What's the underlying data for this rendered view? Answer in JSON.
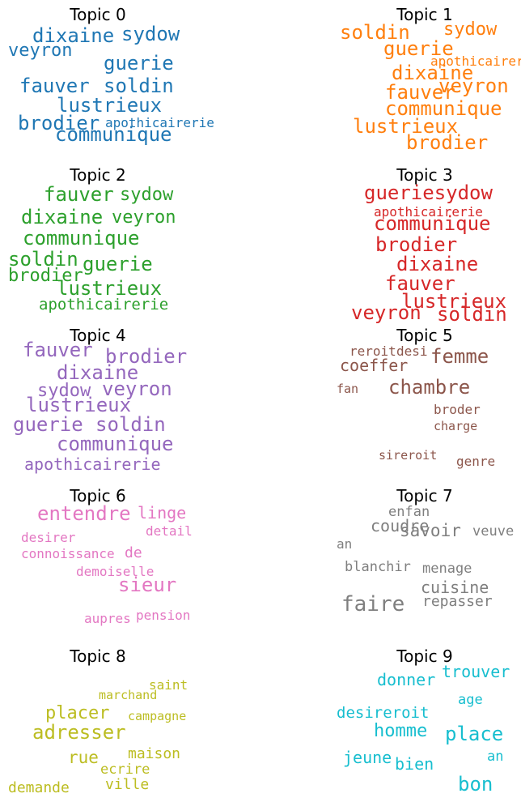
{
  "chart_data": [
    {
      "type": "wordcloud",
      "title": "Topic 0",
      "color": "#1f77b4",
      "words": [
        {
          "text": "dixaine",
          "weight": 0.85
        },
        {
          "text": "sydow",
          "weight": 0.85
        },
        {
          "text": "veyron",
          "weight": 0.78
        },
        {
          "text": "guerie",
          "weight": 0.85
        },
        {
          "text": "fauver",
          "weight": 0.85
        },
        {
          "text": "soldin",
          "weight": 0.85
        },
        {
          "text": "lustrieux",
          "weight": 0.85
        },
        {
          "text": "brodier",
          "weight": 0.85
        },
        {
          "text": "apothicairerie",
          "weight": 0.35
        },
        {
          "text": "communique",
          "weight": 0.85
        }
      ]
    },
    {
      "type": "wordcloud",
      "title": "Topic 1",
      "color": "#ff7f0e",
      "words": [
        {
          "text": "soldin",
          "weight": 0.85
        },
        {
          "text": "sydow",
          "weight": 0.78
        },
        {
          "text": "guerie",
          "weight": 0.85
        },
        {
          "text": "apothicairerie",
          "weight": 0.35
        },
        {
          "text": "dixaine",
          "weight": 0.85
        },
        {
          "text": "fauver",
          "weight": 0.85
        },
        {
          "text": "veyron",
          "weight": 0.85
        },
        {
          "text": "communique",
          "weight": 0.85
        },
        {
          "text": "lustrieux",
          "weight": 0.85
        },
        {
          "text": "brodier",
          "weight": 0.85
        }
      ]
    },
    {
      "type": "wordcloud",
      "title": "Topic 2",
      "color": "#2ca02c",
      "words": [
        {
          "text": "fauver",
          "weight": 0.85
        },
        {
          "text": "sydow",
          "weight": 0.78
        },
        {
          "text": "dixaine",
          "weight": 0.85
        },
        {
          "text": "veyron",
          "weight": 0.78
        },
        {
          "text": "communique",
          "weight": 0.85
        },
        {
          "text": "soldin",
          "weight": 0.85
        },
        {
          "text": "guerie",
          "weight": 0.85
        },
        {
          "text": "brodier",
          "weight": 0.72
        },
        {
          "text": "lustrieux",
          "weight": 0.85
        },
        {
          "text": "apothicairerie",
          "weight": 0.55
        }
      ]
    },
    {
      "type": "wordcloud",
      "title": "Topic 3",
      "color": "#d62728",
      "words": [
        {
          "text": "gueriesydow",
          "weight": 0.85
        },
        {
          "text": "apothicairerie",
          "weight": 0.4
        },
        {
          "text": "communique",
          "weight": 0.85
        },
        {
          "text": "brodier",
          "weight": 0.85
        },
        {
          "text": "dixaine",
          "weight": 0.85
        },
        {
          "text": "fauver",
          "weight": 0.85
        },
        {
          "text": "lustrieux",
          "weight": 0.85
        },
        {
          "text": "veyron",
          "weight": 0.85
        },
        {
          "text": "soldin",
          "weight": 0.85
        }
      ]
    },
    {
      "type": "wordcloud",
      "title": "Topic 4",
      "color": "#9467bd",
      "words": [
        {
          "text": "fauver",
          "weight": 0.85
        },
        {
          "text": "brodier",
          "weight": 0.85
        },
        {
          "text": "dixaine",
          "weight": 0.85
        },
        {
          "text": "sydow",
          "weight": 0.72
        },
        {
          "text": "veyron",
          "weight": 0.85
        },
        {
          "text": "lustrieux",
          "weight": 0.85
        },
        {
          "text": "guerie",
          "weight": 0.85
        },
        {
          "text": "soldin",
          "weight": 0.85
        },
        {
          "text": "communique",
          "weight": 0.85
        },
        {
          "text": "apothicairerie",
          "weight": 0.6
        }
      ]
    },
    {
      "type": "wordcloud",
      "title": "Topic 5",
      "color": "#8c564b",
      "words": [
        {
          "text": "reroit",
          "weight": 0.4
        },
        {
          "text": "desi",
          "weight": 0.4
        },
        {
          "text": "femme",
          "weight": 0.85
        },
        {
          "text": "coeffer",
          "weight": 0.6
        },
        {
          "text": "chambre",
          "weight": 0.85
        },
        {
          "text": "fan",
          "weight": 0.3
        },
        {
          "text": "broder",
          "weight": 0.4
        },
        {
          "text": "charge",
          "weight": 0.3
        },
        {
          "text": "sireroit",
          "weight": 0.3
        },
        {
          "text": "genre",
          "weight": 0.4
        }
      ]
    },
    {
      "type": "wordcloud",
      "title": "Topic 6",
      "color": "#e377c2",
      "words": [
        {
          "text": "entendre",
          "weight": 0.85
        },
        {
          "text": "linge",
          "weight": 0.6
        },
        {
          "text": "detail",
          "weight": 0.35
        },
        {
          "text": "desirer",
          "weight": 0.35
        },
        {
          "text": "connoissance",
          "weight": 0.4
        },
        {
          "text": "de",
          "weight": 0.5
        },
        {
          "text": "demoiselle",
          "weight": 0.4
        },
        {
          "text": "sieur",
          "weight": 0.85
        },
        {
          "text": "aupres",
          "weight": 0.4
        },
        {
          "text": "pension",
          "weight": 0.35
        }
      ]
    },
    {
      "type": "wordcloud",
      "title": "Topic 7",
      "color": "#7f7f7f",
      "words": [
        {
          "text": "enfan",
          "weight": 0.45
        },
        {
          "text": "coudre",
          "weight": 0.6
        },
        {
          "text": "savoir",
          "weight": 0.7
        },
        {
          "text": "veuve",
          "weight": 0.45
        },
        {
          "text": "an",
          "weight": 0.35
        },
        {
          "text": "blanchir",
          "weight": 0.45
        },
        {
          "text": "menage",
          "weight": 0.45
        },
        {
          "text": "cuisine",
          "weight": 0.65
        },
        {
          "text": "repasser",
          "weight": 0.5
        },
        {
          "text": "faire",
          "weight": 1.0
        }
      ]
    },
    {
      "type": "wordcloud",
      "title": "Topic 8",
      "color": "#bcbd22",
      "words": [
        {
          "text": "saint",
          "weight": 0.35
        },
        {
          "text": "marchand",
          "weight": 0.3
        },
        {
          "text": "placer",
          "weight": 0.75
        },
        {
          "text": "campagne",
          "weight": 0.3
        },
        {
          "text": "adresser",
          "weight": 0.9
        },
        {
          "text": "maison",
          "weight": 0.5
        },
        {
          "text": "rue",
          "weight": 0.7
        },
        {
          "text": "ecrire",
          "weight": 0.45
        },
        {
          "text": "demande",
          "weight": 0.5
        },
        {
          "text": "ville",
          "weight": 0.5
        }
      ]
    },
    {
      "type": "wordcloud",
      "title": "Topic 9",
      "color": "#17becf",
      "words": [
        {
          "text": "trouver",
          "weight": 0.6
        },
        {
          "text": "donner",
          "weight": 0.6
        },
        {
          "text": "age",
          "weight": 0.45
        },
        {
          "text": "desireroit",
          "weight": 0.55
        },
        {
          "text": "homme",
          "weight": 0.75
        },
        {
          "text": "place",
          "weight": 0.9
        },
        {
          "text": "jeune",
          "weight": 0.65
        },
        {
          "text": "bien",
          "weight": 0.6
        },
        {
          "text": "an",
          "weight": 0.45
        },
        {
          "text": "bon",
          "weight": 0.9
        }
      ]
    }
  ]
}
